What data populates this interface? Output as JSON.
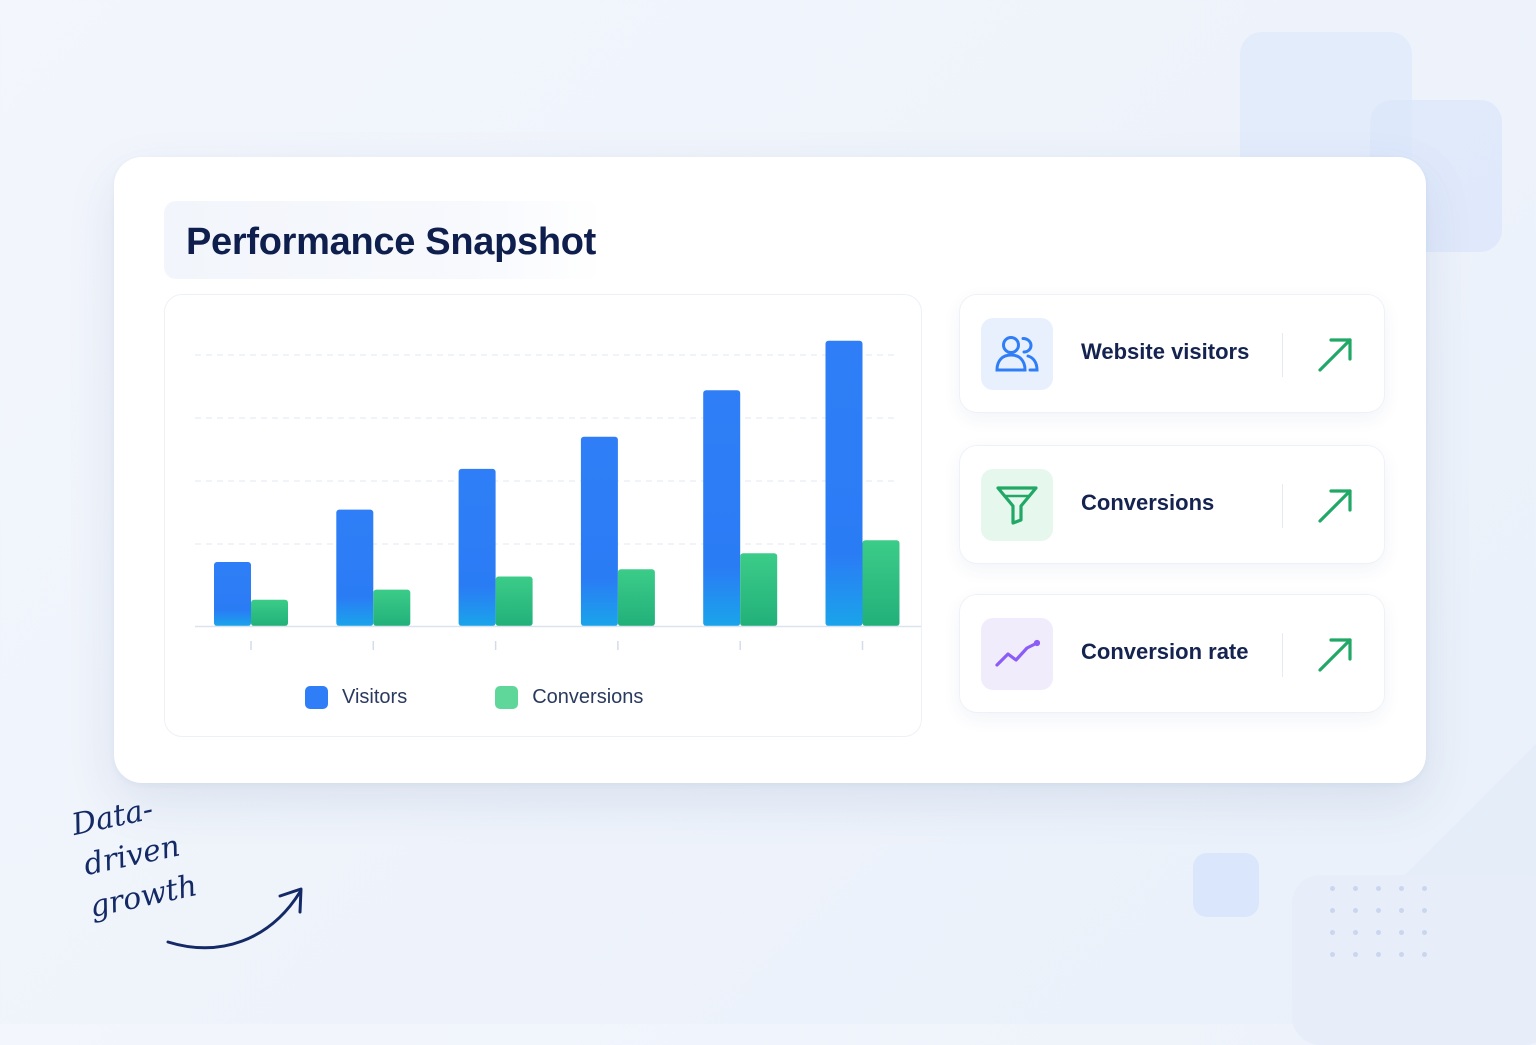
{
  "title": "Performance Snapshot",
  "chart_data": {
    "type": "bar",
    "categories": [
      "",
      "",
      "",
      "",
      "",
      ""
    ],
    "series": [
      {
        "name": "Visitors",
        "values": [
          22,
          40,
          54,
          65,
          81,
          98
        ],
        "color": "#2f7ef7"
      },
      {
        "name": "Conversions",
        "values": [
          9,
          12.5,
          17,
          19.5,
          25,
          29.5
        ],
        "color": "#34c47c"
      }
    ],
    "ylim": [
      0,
      100
    ],
    "grid": true,
    "legend": "bottom"
  },
  "legend": {
    "visitors_label": "Visitors",
    "conversions_label": "Conversions"
  },
  "kpis": [
    {
      "label": "Website visitors",
      "icon": "users-icon",
      "trend": "up-arrow-icon"
    },
    {
      "label": "Conversions",
      "icon": "funnel-icon",
      "trend": "up-arrow-icon"
    },
    {
      "label": "Conversion rate",
      "icon": "trend-line-icon",
      "trend": "up-arrow-icon"
    }
  ],
  "handwritten": {
    "line1": "Data-",
    "line2": "driven",
    "line3": "growth"
  },
  "colors": {
    "accent_blue": "#2f7ef7",
    "accent_green": "#34c47c",
    "accent_purple": "#8b5cf6",
    "trend_green": "#22a866",
    "title": "#0f1f4d"
  }
}
